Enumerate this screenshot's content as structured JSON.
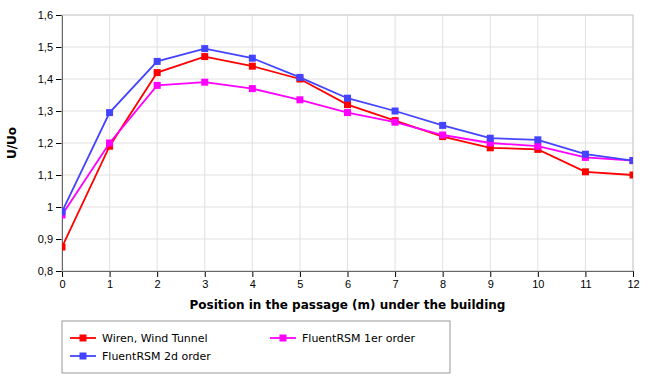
{
  "chart_data": {
    "type": "line",
    "xlabel": "Position in the passage  (m)  under the building",
    "ylabel": "U/Uo",
    "x": [
      0,
      1,
      2,
      3,
      4,
      5,
      6,
      7,
      8,
      9,
      10,
      11,
      12
    ],
    "series": [
      {
        "name": "Wiren, Wind Tunnel",
        "color": "#FF0000",
        "marker": "square",
        "values": [
          0.875,
          1.19,
          1.42,
          1.47,
          1.44,
          1.4,
          1.32,
          1.27,
          1.22,
          1.185,
          1.18,
          1.11,
          1.1
        ]
      },
      {
        "name": "FluentRSM  1er order",
        "color": "#FF00FF",
        "marker": "square",
        "values": [
          0.975,
          1.2,
          1.38,
          1.39,
          1.37,
          1.335,
          1.295,
          1.265,
          1.225,
          1.2,
          1.19,
          1.155,
          1.145
        ]
      },
      {
        "name": "FluentRSM  2d order",
        "color": "#4444FF",
        "marker": "square",
        "values": [
          0.985,
          1.295,
          1.455,
          1.495,
          1.465,
          1.405,
          1.34,
          1.3,
          1.255,
          1.215,
          1.21,
          1.165,
          1.145
        ]
      }
    ],
    "xlim": [
      0,
      12
    ],
    "xticks": [
      0,
      1,
      2,
      3,
      4,
      5,
      6,
      7,
      8,
      9,
      10,
      11,
      12
    ],
    "ylim": [
      0.8,
      1.6
    ],
    "yticks": [
      {
        "value": 0.8,
        "label": "0,8"
      },
      {
        "value": 0.9,
        "label": "0,9"
      },
      1,
      {
        "value": 1.1,
        "label": "1,1"
      },
      {
        "value": 1.2,
        "label": "1,2"
      },
      {
        "value": 1.3,
        "label": "1,3"
      },
      {
        "value": 1.4,
        "label": "1,4"
      },
      {
        "value": 1.5,
        "label": "1,5"
      },
      {
        "value": 1.6,
        "label": "1,6"
      }
    ],
    "grid": true,
    "legend": "bottom"
  }
}
